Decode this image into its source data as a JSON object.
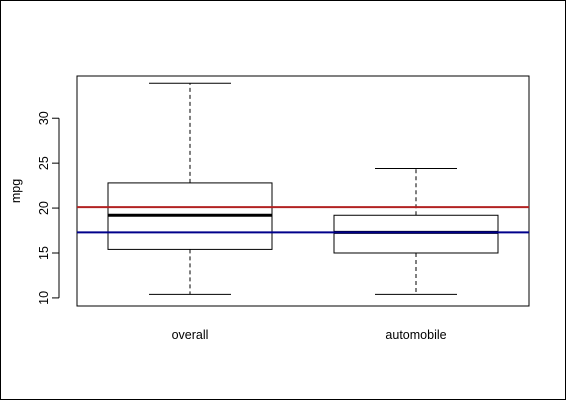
{
  "chart_data": {
    "type": "boxplot",
    "title": "",
    "xlabel": "",
    "ylabel": "mpg",
    "ylim": [
      10,
      34
    ],
    "yticks": [
      10,
      15,
      20,
      25,
      30
    ],
    "grid": false,
    "legend": "none",
    "categories": [
      "overall",
      "automobile"
    ],
    "boxes": [
      {
        "category": "overall",
        "min": 10.4,
        "q1": 15.4,
        "median": 19.2,
        "q3": 22.8,
        "max": 33.9
      },
      {
        "category": "automobile",
        "min": 10.4,
        "q1": 15.0,
        "median": 17.3,
        "q3": 19.2,
        "max": 24.4
      }
    ],
    "reference_lines": [
      {
        "y": 20.1,
        "color": "#b22222"
      },
      {
        "y": 17.3,
        "color": "#00008b"
      }
    ]
  }
}
